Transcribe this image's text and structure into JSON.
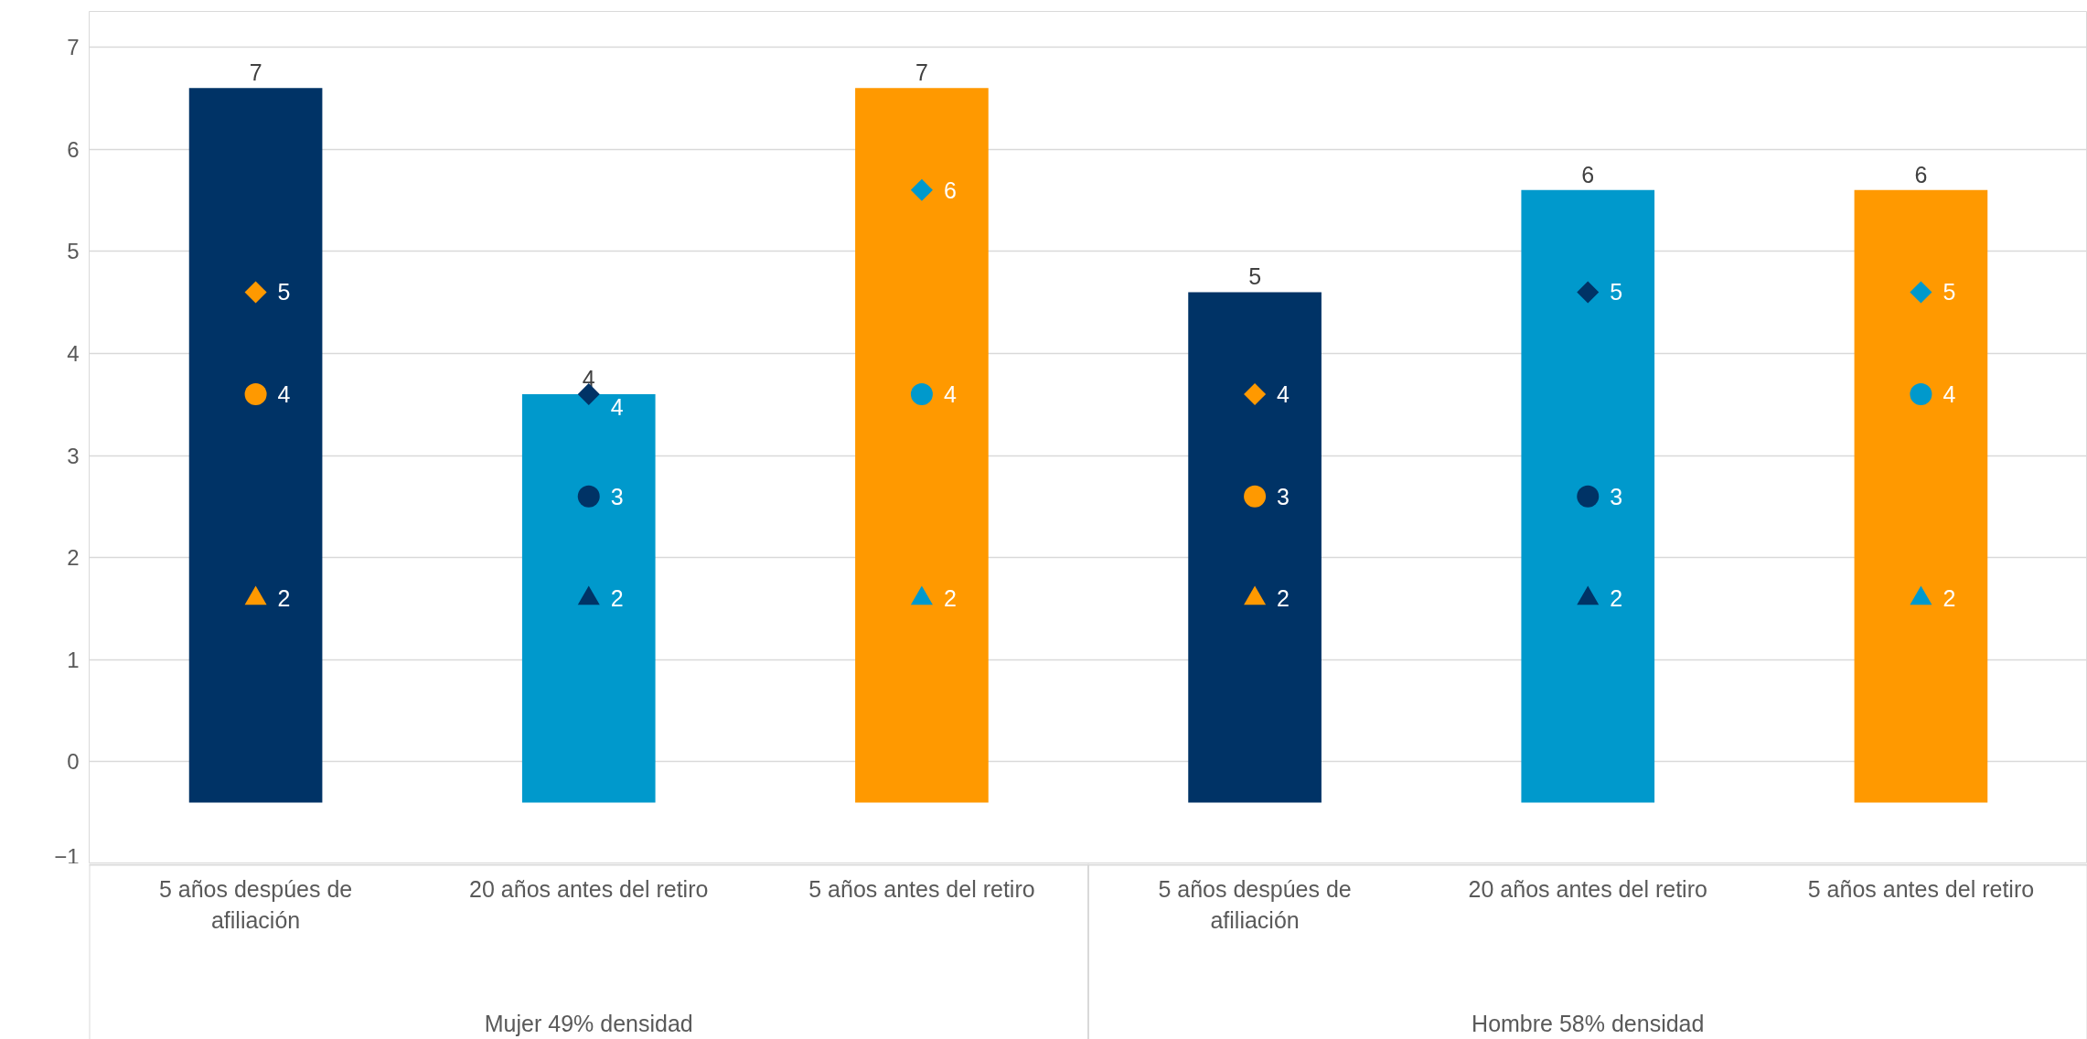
{
  "chart_data": {
    "type": "bar",
    "categories": [
      "5 años despúes de afiliación",
      "20 años antes del retiro",
      "5 años antes del retiro",
      "5 años despúes de afiliación",
      "20 años antes del retiro",
      "5 años antes del retiro"
    ],
    "series": [
      {
        "colors": [
          "#003366",
          "#0099cc",
          "#ff9900",
          "#003366",
          "#0099cc",
          "#ff9900"
        ],
        "base": [
          -0.4,
          -0.4,
          -0.4,
          -0.4,
          -0.4,
          -0.4
        ],
        "values": [
          7,
          4,
          7,
          5,
          6,
          6
        ],
        "value_labels": [
          "7",
          "4",
          "7",
          "5",
          "6",
          "6"
        ]
      },
      {
        "type": "scatter",
        "marker": "diamond",
        "colors": [
          "#ff9900",
          "#003366",
          "#0099cc",
          "#ff9900",
          "#003366",
          "#0099cc"
        ],
        "values": [
          4.6,
          3.6,
          5.6,
          3.6,
          4.6,
          4.6
        ],
        "value_labels": [
          "5",
          "4",
          "6",
          "4",
          "5",
          "5"
        ]
      },
      {
        "type": "scatter",
        "marker": "circle",
        "colors": [
          "#ff9900",
          "#003366",
          "#0099cc",
          "#ff9900",
          "#003366",
          "#0099cc"
        ],
        "values": [
          3.6,
          2.6,
          3.6,
          2.6,
          2.6,
          3.6
        ],
        "value_labels": [
          "4",
          "3",
          "4",
          "3",
          "3",
          "4"
        ]
      },
      {
        "type": "scatter",
        "marker": "triangle",
        "colors": [
          "#ff9900",
          "#003366",
          "#0099cc",
          "#ff9900",
          "#003366",
          "#0099cc"
        ],
        "values": [
          1.6,
          1.6,
          1.6,
          1.6,
          1.6,
          1.6
        ],
        "value_labels": [
          "2",
          "2",
          "2",
          "2",
          "2",
          "2"
        ]
      }
    ],
    "annotations": [
      "Mujer 49% densidad",
      "Hombre 58% densidad"
    ],
    "ylim": [
      -1,
      7.35
    ],
    "yticks": [
      -1,
      0,
      1,
      2,
      3,
      4,
      5,
      6,
      7
    ],
    "grid": "y"
  }
}
